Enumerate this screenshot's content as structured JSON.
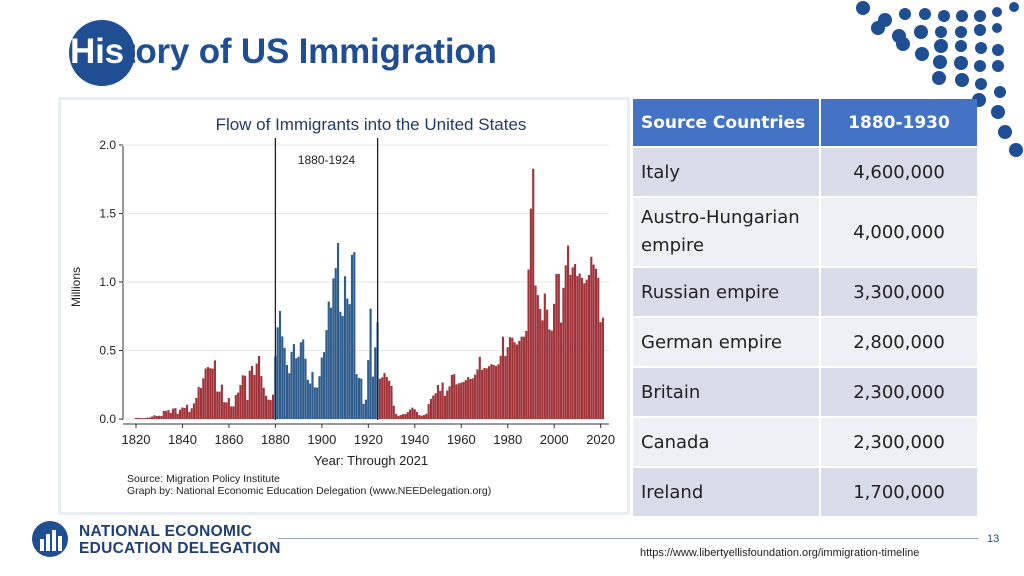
{
  "slide": {
    "title_highlight": "His",
    "title_rest": "tory of US Immigration",
    "page_number": "13",
    "source_url": "https://www.libertyellisfoundation.org/immigration-timeline"
  },
  "logo": {
    "line1": "NATIONAL ECONOMIC",
    "line2": "EDUCATION DELEGATION"
  },
  "colors": {
    "title": "#1f4e92",
    "bar_red": "#a0323a",
    "bar_blue": "#2e5c8c",
    "header": "#4472c4"
  },
  "table": {
    "headers": [
      "Source Countries",
      "1880-1930"
    ],
    "rows": [
      {
        "country": "Italy",
        "value": "4,600,000"
      },
      {
        "country": "Austro-Hungarian empire",
        "value": "4,000,000"
      },
      {
        "country": "Russian empire",
        "value": "3,300,000"
      },
      {
        "country": "German empire",
        "value": "2,800,000"
      },
      {
        "country": "Britain",
        "value": "2,300,000"
      },
      {
        "country": "Canada",
        "value": "2,300,000"
      },
      {
        "country": "Ireland",
        "value": "1,700,000"
      }
    ]
  },
  "chart_data": {
    "type": "bar",
    "title": "Flow of Immigrants into the United States",
    "xlabel": "Year: Through 2021",
    "ylabel": "Millions",
    "xlim": [
      1820,
      2021
    ],
    "ylim": [
      0,
      2.0
    ],
    "yticks": [
      "0.0",
      "0.5",
      "1.0",
      "1.5",
      "2.0"
    ],
    "xticks": [
      "1820",
      "1840",
      "1860",
      "1880",
      "1900",
      "1920",
      "1940",
      "1960",
      "1980",
      "2000",
      "2020"
    ],
    "highlight_range": [
      1880,
      1924
    ],
    "highlight_label": "1880-1924",
    "source_note": "Source: Migration Policy Institute",
    "graph_note": "Graph by: National Economic Education Delegation (www.NEEDelegation.org)",
    "series": [
      {
        "values": [
          [
            1820,
            0.008
          ],
          [
            1821,
            0.009
          ],
          [
            1822,
            0.007
          ],
          [
            1823,
            0.006
          ],
          [
            1824,
            0.007
          ],
          [
            1825,
            0.01
          ],
          [
            1826,
            0.011
          ],
          [
            1827,
            0.018
          ],
          [
            1828,
            0.027
          ],
          [
            1829,
            0.022
          ],
          [
            1830,
            0.023
          ],
          [
            1831,
            0.022
          ],
          [
            1832,
            0.06
          ],
          [
            1833,
            0.058
          ],
          [
            1834,
            0.065
          ],
          [
            1835,
            0.045
          ],
          [
            1836,
            0.076
          ],
          [
            1837,
            0.079
          ],
          [
            1838,
            0.038
          ],
          [
            1839,
            0.068
          ],
          [
            1840,
            0.084
          ],
          [
            1841,
            0.08
          ],
          [
            1842,
            0.104
          ],
          [
            1843,
            0.052
          ],
          [
            1844,
            0.078
          ],
          [
            1845,
            0.114
          ],
          [
            1846,
            0.154
          ],
          [
            1847,
            0.234
          ],
          [
            1848,
            0.226
          ],
          [
            1849,
            0.297
          ],
          [
            1850,
            0.369
          ],
          [
            1851,
            0.379
          ],
          [
            1852,
            0.371
          ],
          [
            1853,
            0.368
          ],
          [
            1854,
            0.428
          ],
          [
            1855,
            0.2
          ],
          [
            1856,
            0.2
          ],
          [
            1857,
            0.251
          ],
          [
            1858,
            0.123
          ],
          [
            1859,
            0.121
          ],
          [
            1860,
            0.153
          ],
          [
            1861,
            0.092
          ],
          [
            1862,
            0.092
          ],
          [
            1863,
            0.176
          ],
          [
            1864,
            0.193
          ],
          [
            1865,
            0.248
          ],
          [
            1866,
            0.319
          ],
          [
            1867,
            0.316
          ],
          [
            1868,
            0.139
          ],
          [
            1869,
            0.353
          ],
          [
            1870,
            0.387
          ],
          [
            1871,
            0.321
          ],
          [
            1872,
            0.405
          ],
          [
            1873,
            0.46
          ],
          [
            1874,
            0.313
          ],
          [
            1875,
            0.228
          ],
          [
            1876,
            0.17
          ],
          [
            1877,
            0.142
          ],
          [
            1878,
            0.138
          ],
          [
            1879,
            0.178
          ],
          [
            1880,
            0.457
          ],
          [
            1881,
            0.669
          ],
          [
            1882,
            0.789
          ],
          [
            1883,
            0.603
          ],
          [
            1884,
            0.519
          ],
          [
            1885,
            0.395
          ],
          [
            1886,
            0.334
          ],
          [
            1887,
            0.49
          ],
          [
            1888,
            0.547
          ],
          [
            1889,
            0.444
          ],
          [
            1890,
            0.455
          ],
          [
            1891,
            0.56
          ],
          [
            1892,
            0.58
          ],
          [
            1893,
            0.44
          ],
          [
            1894,
            0.286
          ],
          [
            1895,
            0.259
          ],
          [
            1896,
            0.343
          ],
          [
            1897,
            0.231
          ],
          [
            1898,
            0.229
          ],
          [
            1899,
            0.312
          ],
          [
            1900,
            0.449
          ],
          [
            1901,
            0.488
          ],
          [
            1902,
            0.649
          ],
          [
            1903,
            0.857
          ],
          [
            1904,
            0.813
          ],
          [
            1905,
            1.026
          ],
          [
            1906,
            1.101
          ],
          [
            1907,
            1.285
          ],
          [
            1908,
            0.783
          ],
          [
            1909,
            0.752
          ],
          [
            1910,
            1.042
          ],
          [
            1911,
            0.879
          ],
          [
            1912,
            0.838
          ],
          [
            1913,
            1.198
          ],
          [
            1914,
            1.218
          ],
          [
            1915,
            0.327
          ],
          [
            1916,
            0.299
          ],
          [
            1917,
            0.295
          ],
          [
            1918,
            0.111
          ],
          [
            1919,
            0.141
          ],
          [
            1920,
            0.43
          ],
          [
            1921,
            0.805
          ],
          [
            1922,
            0.31
          ],
          [
            1923,
            0.523
          ],
          [
            1924,
            0.707
          ],
          [
            1925,
            0.294
          ],
          [
            1926,
            0.304
          ],
          [
            1927,
            0.335
          ],
          [
            1928,
            0.307
          ],
          [
            1929,
            0.28
          ],
          [
            1930,
            0.242
          ],
          [
            1931,
            0.097
          ],
          [
            1932,
            0.036
          ],
          [
            1933,
            0.023
          ],
          [
            1934,
            0.029
          ],
          [
            1935,
            0.035
          ],
          [
            1936,
            0.036
          ],
          [
            1937,
            0.05
          ],
          [
            1938,
            0.068
          ],
          [
            1939,
            0.083
          ],
          [
            1940,
            0.071
          ],
          [
            1941,
            0.052
          ],
          [
            1942,
            0.029
          ],
          [
            1943,
            0.024
          ],
          [
            1944,
            0.029
          ],
          [
            1945,
            0.038
          ],
          [
            1946,
            0.109
          ],
          [
            1947,
            0.147
          ],
          [
            1948,
            0.171
          ],
          [
            1949,
            0.188
          ],
          [
            1950,
            0.249
          ],
          [
            1951,
            0.206
          ],
          [
            1952,
            0.266
          ],
          [
            1953,
            0.17
          ],
          [
            1954,
            0.208
          ],
          [
            1955,
            0.238
          ],
          [
            1956,
            0.322
          ],
          [
            1957,
            0.327
          ],
          [
            1958,
            0.253
          ],
          [
            1959,
            0.261
          ],
          [
            1960,
            0.265
          ],
          [
            1961,
            0.271
          ],
          [
            1962,
            0.284
          ],
          [
            1963,
            0.306
          ],
          [
            1964,
            0.292
          ],
          [
            1965,
            0.297
          ],
          [
            1966,
            0.323
          ],
          [
            1967,
            0.362
          ],
          [
            1968,
            0.454
          ],
          [
            1969,
            0.359
          ],
          [
            1970,
            0.373
          ],
          [
            1971,
            0.37
          ],
          [
            1972,
            0.385
          ],
          [
            1973,
            0.4
          ],
          [
            1974,
            0.395
          ],
          [
            1975,
            0.386
          ],
          [
            1976,
            0.399
          ],
          [
            1977,
            0.462
          ],
          [
            1978,
            0.601
          ],
          [
            1979,
            0.46
          ],
          [
            1980,
            0.524
          ],
          [
            1981,
            0.597
          ],
          [
            1982,
            0.594
          ],
          [
            1983,
            0.56
          ],
          [
            1984,
            0.544
          ],
          [
            1985,
            0.57
          ],
          [
            1986,
            0.602
          ],
          [
            1987,
            0.601
          ],
          [
            1988,
            0.643
          ],
          [
            1989,
            1.091
          ],
          [
            1990,
            1.536
          ],
          [
            1991,
            1.827
          ],
          [
            1992,
            0.974
          ],
          [
            1993,
            0.904
          ],
          [
            1994,
            0.804
          ],
          [
            1995,
            0.72
          ],
          [
            1996,
            0.916
          ],
          [
            1997,
            0.798
          ],
          [
            1998,
            0.654
          ],
          [
            1999,
            0.645
          ],
          [
            2000,
            0.841
          ],
          [
            2001,
            1.059
          ],
          [
            2002,
            1.059
          ],
          [
            2003,
            0.704
          ],
          [
            2004,
            0.958
          ],
          [
            2005,
            1.122
          ],
          [
            2006,
            1.266
          ],
          [
            2007,
            1.052
          ],
          [
            2008,
            1.107
          ],
          [
            2009,
            1.131
          ],
          [
            2010,
            1.043
          ],
          [
            2011,
            1.062
          ],
          [
            2012,
            1.031
          ],
          [
            2013,
            0.991
          ],
          [
            2014,
            1.017
          ],
          [
            2015,
            1.051
          ],
          [
            2016,
            1.184
          ],
          [
            2017,
            1.127
          ],
          [
            2018,
            1.097
          ],
          [
            2019,
            1.031
          ],
          [
            2020,
            0.707
          ],
          [
            2021,
            0.74
          ]
        ]
      }
    ]
  }
}
